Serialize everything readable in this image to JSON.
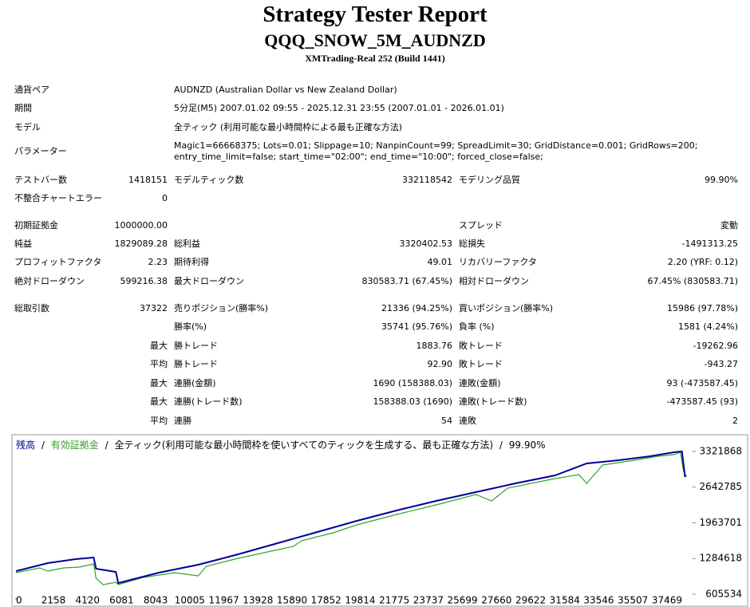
{
  "header": {
    "title": "Strategy Tester Report",
    "subtitle": "QQQ_SNOW_5M_AUDNZD",
    "server": "XMTrading-Real 252 (Build 1441)"
  },
  "table": {
    "rows": [
      {
        "label1": "通貨ペア",
        "text": "AUDNZD (Australian Dollar vs New Zealand Dollar)"
      },
      {
        "label1": "期間",
        "text": "5分足(M5) 2007.01.02 09:55 - 2025.12.31 23:55 (2007.01.01 - 2026.01.01)"
      },
      {
        "label1": "モデル",
        "text": "全ティック (利用可能な最小時間枠による最も正確な方法)"
      },
      {
        "label1": "パラメーター",
        "text": "Magic1=66668375; Lots=0.01; Slippage=10; NanpinCount=99; SpreadLimit=30; GridDistance=0.001; GridRows=200; entry_time_limit=false; start_time=\"02:00\"; end_time=\"10:00\"; forced_close=false;"
      },
      {
        "label1": "テストバー数",
        "value1": "1418151",
        "label2": "モデルティック数",
        "value2": "332118542",
        "label3": "モデリング品質",
        "value3": "99.90%"
      },
      {
        "label1": "不整合チャートエラー",
        "value1": "0"
      },
      {
        "label1": "初期証拠金",
        "value1": "1000000.00",
        "label3": "スプレッド",
        "value3": "変動"
      },
      {
        "label1": "純益",
        "value1": "1829089.28",
        "label2": "総利益",
        "value2": "3320402.53",
        "label3": "総損失",
        "value3": "-1491313.25"
      },
      {
        "label1": "プロフィットファクタ",
        "value1": "2.23",
        "label2": "期待利得",
        "value2": "49.01",
        "label3": "リカバリーファクタ",
        "value3": "2.20 (YRF: 0.12)"
      },
      {
        "label1": "絶対ドローダウン",
        "value1": "599216.38",
        "label2": "最大ドローダウン",
        "value2": "830583.71 (67.45%)",
        "label3": "相対ドローダウン",
        "value3": "67.45% (830583.71)"
      },
      {
        "label1": "総取引数",
        "value1": "37322",
        "label2": "売りポジション(勝率%)",
        "value2": "21336 (94.25%)",
        "label3": "買いポジション(勝率%)",
        "value3": "15986 (97.78%)"
      },
      {
        "label2": "勝率(%)",
        "value2": "35741 (95.76%)",
        "label3": "負率 (%)",
        "value3": "1581 (4.24%)"
      },
      {
        "value1": "最大",
        "label2": "勝トレード",
        "value2": "1883.76",
        "label3": "敗トレード",
        "value3": "-19262.96"
      },
      {
        "value1": "平均",
        "label2": "勝トレード",
        "value2": "92.90",
        "label3": "敗トレード",
        "value3": "-943.27"
      },
      {
        "value1": "最大",
        "label2": "連勝(金額)",
        "value2": "1690 (158388.03)",
        "label3": "連敗(金額)",
        "value3": "93 (-473587.45)"
      },
      {
        "value1": "最大",
        "label2": "連勝(トレード数)",
        "value2": "158388.03 (1690)",
        "label3": "連敗(トレード数)",
        "value3": "-473587.45 (93)"
      },
      {
        "value1": "平均",
        "label2": "連勝",
        "value2": "54",
        "label3": "連敗",
        "value3": "2"
      }
    ]
  },
  "chart_data": {
    "type": "line",
    "title": "全ティック(利用可能な最小時間枠を使いすべてのティックを生成する、最も正確な方法)",
    "quality": "99.90%",
    "legend_separator": "/",
    "xlim": [
      0,
      38850
    ],
    "ylim": [
      560000,
      3640000
    ],
    "xticks": [
      0,
      2158,
      4120,
      6081,
      8043,
      10005,
      11967,
      13928,
      15890,
      17852,
      19814,
      21775,
      23737,
      25699,
      27660,
      29622,
      31584,
      33546,
      35507,
      37469
    ],
    "yticks": [
      605534,
      1284618,
      1963701,
      2642785,
      3321868
    ],
    "series": [
      {
        "name": "残高",
        "color": "#000099",
        "x": [
          0,
          1825,
          3422,
          4472,
          4609,
          5749,
          5886,
          8213,
          10495,
          12776,
          15058,
          17339,
          19621,
          21902,
          24184,
          26465,
          28747,
          31028,
          32854,
          34679,
          36504,
          37873,
          38329,
          38512
        ],
        "values": [
          1045600,
          1197400,
          1273200,
          1303600,
          1091100,
          1030400,
          818000,
          1015300,
          1167000,
          1364300,
          1576700,
          1789200,
          2001600,
          2198900,
          2381000,
          2547900,
          2714900,
          2866600,
          3094200,
          3154900,
          3230800,
          3306700,
          3321900,
          2836300
        ]
      },
      {
        "name": "有効証拠金",
        "color": "#33a02c",
        "x": [
          0,
          1369,
          1825,
          2738,
          3650,
          4472,
          4609,
          5019,
          5749,
          5886,
          7301,
          9126,
          10495,
          10951,
          12776,
          15971,
          16427,
          18252,
          19621,
          21902,
          24184,
          26465,
          27378,
          28291,
          31028,
          32397,
          32854,
          33766,
          35591,
          36960,
          37873,
          38238,
          38420,
          38602
        ],
        "values": [
          1015300,
          1106300,
          1045600,
          1106300,
          1121500,
          1182200,
          909000,
          787600,
          833200,
          787600,
          924200,
          1015300,
          954600,
          1136700,
          1288400,
          1516000,
          1622300,
          1774000,
          1925800,
          2123000,
          2305100,
          2502400,
          2381000,
          2623800,
          2805900,
          2881800,
          2714900,
          3064200,
          3154900,
          3230800,
          3261200,
          3306700,
          2957700,
          2836300
        ]
      }
    ]
  }
}
